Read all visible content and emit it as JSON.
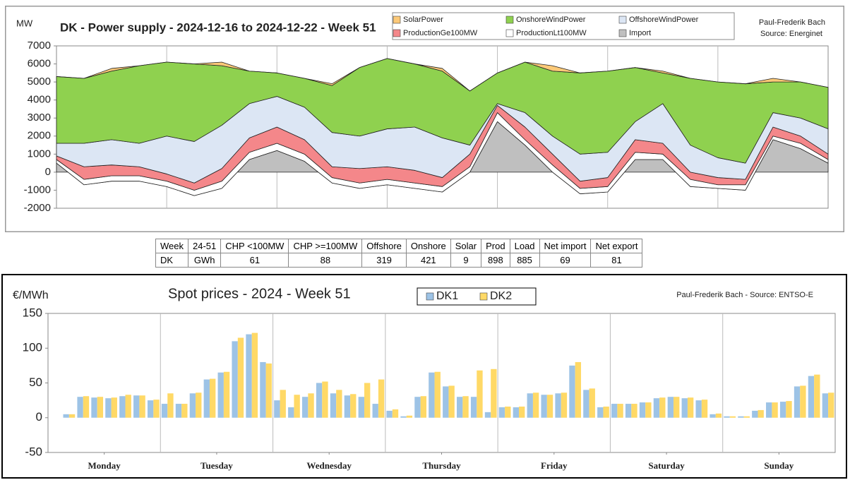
{
  "chart_data": [
    {
      "type": "area",
      "title": "DK - Power supply - 2024-12-16 to 2024-12-22 - Week 51",
      "y_label": "MW",
      "notes": [
        "Paul-Frederik Bach",
        "Source: Energinet"
      ],
      "x": [
        0,
        6,
        12,
        18,
        24,
        30,
        36,
        42,
        48,
        54,
        60,
        66,
        72,
        78,
        84,
        90,
        96,
        102,
        108,
        114,
        120,
        126,
        132,
        138,
        144,
        150,
        156,
        162,
        168
      ],
      "xlim": [
        0,
        168
      ],
      "ylim": [
        -2000,
        7000
      ],
      "yticks": [
        -2000,
        -1000,
        0,
        1000,
        2000,
        3000,
        4000,
        5000,
        6000,
        7000
      ],
      "grid": false,
      "series": [
        {
          "name": "Import",
          "color": "#bfbfbf",
          "values": [
            500,
            -700,
            -500,
            -500,
            -800,
            -1300,
            -900,
            700,
            1200,
            600,
            -600,
            -900,
            -700,
            -900,
            -1100,
            0,
            2800,
            1500,
            0,
            -1200,
            -1100,
            700,
            700,
            -800,
            -900,
            -1000,
            1800,
            1300,
            500
          ]
        },
        {
          "name": "ProductionLt100MW",
          "color": "#ffffff",
          "values": [
            200,
            300,
            300,
            300,
            300,
            300,
            400,
            400,
            400,
            400,
            300,
            300,
            300,
            300,
            300,
            300,
            500,
            300,
            400,
            300,
            300,
            400,
            300,
            400,
            200,
            300,
            200,
            300,
            200
          ]
        },
        {
          "name": "ProductionGe100MW",
          "color": "#f4878a",
          "values": [
            200,
            700,
            600,
            500,
            400,
            400,
            700,
            800,
            900,
            800,
            600,
            800,
            700,
            700,
            500,
            700,
            400,
            700,
            600,
            400,
            500,
            700,
            600,
            400,
            400,
            300,
            500,
            400,
            300
          ]
        },
        {
          "name": "OffshoreWindPower",
          "color": "#dce6f4",
          "values": [
            700,
            1300,
            1400,
            1300,
            2100,
            2300,
            2400,
            1900,
            1700,
            1800,
            1900,
            1800,
            2100,
            2400,
            2200,
            500,
            100,
            800,
            1000,
            1500,
            1400,
            1000,
            2200,
            1500,
            1100,
            900,
            800,
            1000,
            1400
          ]
        },
        {
          "name": "OnshoreWindPower",
          "color": "#8fd14f",
          "values": [
            3700,
            3600,
            3800,
            4300,
            4100,
            4300,
            3300,
            1800,
            1300,
            1600,
            2600,
            3800,
            3900,
            3500,
            3700,
            3000,
            1700,
            2800,
            3600,
            4500,
            4500,
            3000,
            1700,
            3700,
            4200,
            4400,
            1700,
            2000,
            2300
          ]
        },
        {
          "name": "SolarPower",
          "color": "#fcc978",
          "values": [
            0,
            0,
            150,
            0,
            0,
            0,
            200,
            0,
            0,
            0,
            100,
            0,
            0,
            0,
            150,
            0,
            0,
            0,
            300,
            0,
            0,
            0,
            100,
            0,
            0,
            0,
            200,
            0,
            0
          ]
        }
      ]
    },
    {
      "type": "bar",
      "title": "Spot prices - 2024 - Week 51",
      "y_label": "€/MWh",
      "notes": [
        "Paul-Frederik Bach - Source: ENTSO-E"
      ],
      "x": [
        0,
        3,
        6,
        9,
        12,
        15,
        18,
        21,
        24,
        27,
        30,
        33,
        36,
        39,
        42,
        45,
        48,
        51,
        54,
        57,
        60,
        63,
        66,
        69,
        72,
        75,
        78,
        81,
        84,
        87,
        90,
        93,
        96,
        99,
        102,
        105,
        108,
        111,
        114,
        117,
        120,
        123,
        126,
        129,
        132,
        135,
        138,
        141,
        144,
        147,
        150,
        153,
        156,
        159,
        162,
        165
      ],
      "xlim": [
        0,
        168
      ],
      "ylim": [
        -50,
        150
      ],
      "yticks": [
        -50,
        0,
        50,
        100,
        150
      ],
      "grid": false,
      "xticks": [
        {
          "value": 12,
          "label": "Monday"
        },
        {
          "value": 36,
          "label": "Tuesday"
        },
        {
          "value": 60,
          "label": "Wednesday"
        },
        {
          "value": 84,
          "label": "Thursday"
        },
        {
          "value": 108,
          "label": "Friday"
        },
        {
          "value": 132,
          "label": "Saturday"
        },
        {
          "value": 156,
          "label": "Sunday"
        }
      ],
      "series": [
        {
          "name": "DK1",
          "color": "#9dc3e6",
          "values": [
            0,
            5,
            30,
            29,
            28,
            31,
            32,
            25,
            20,
            20,
            35,
            55,
            65,
            110,
            120,
            80,
            25,
            15,
            30,
            50,
            35,
            32,
            30,
            20,
            10,
            2,
            30,
            65,
            45,
            30,
            30,
            8,
            15,
            15,
            35,
            33,
            35,
            75,
            40,
            15,
            20,
            20,
            22,
            28,
            30,
            28,
            25,
            5,
            2,
            2,
            10,
            22,
            23,
            45,
            60,
            35
          ]
        },
        {
          "name": "DK2",
          "color": "#ffd966",
          "values": [
            0,
            5,
            31,
            30,
            29,
            33,
            32,
            26,
            35,
            20,
            36,
            56,
            66,
            115,
            122,
            78,
            40,
            33,
            35,
            52,
            40,
            34,
            50,
            55,
            12,
            3,
            31,
            66,
            46,
            31,
            68,
            70,
            16,
            16,
            36,
            33,
            36,
            80,
            42,
            16,
            20,
            20,
            22,
            29,
            30,
            29,
            26,
            6,
            2,
            2,
            11,
            22,
            24,
            46,
            62,
            36
          ]
        }
      ]
    }
  ],
  "table": {
    "rows": [
      [
        "Week",
        "24-51",
        "CHP <100MW",
        "CHP >=100MW",
        "Offshore",
        "Onshore",
        "Solar",
        "Prod",
        "Load",
        "Net import",
        "Net export"
      ],
      [
        "DK",
        "GWh",
        61,
        88,
        319,
        421,
        9,
        898,
        885,
        69,
        81
      ]
    ]
  }
}
